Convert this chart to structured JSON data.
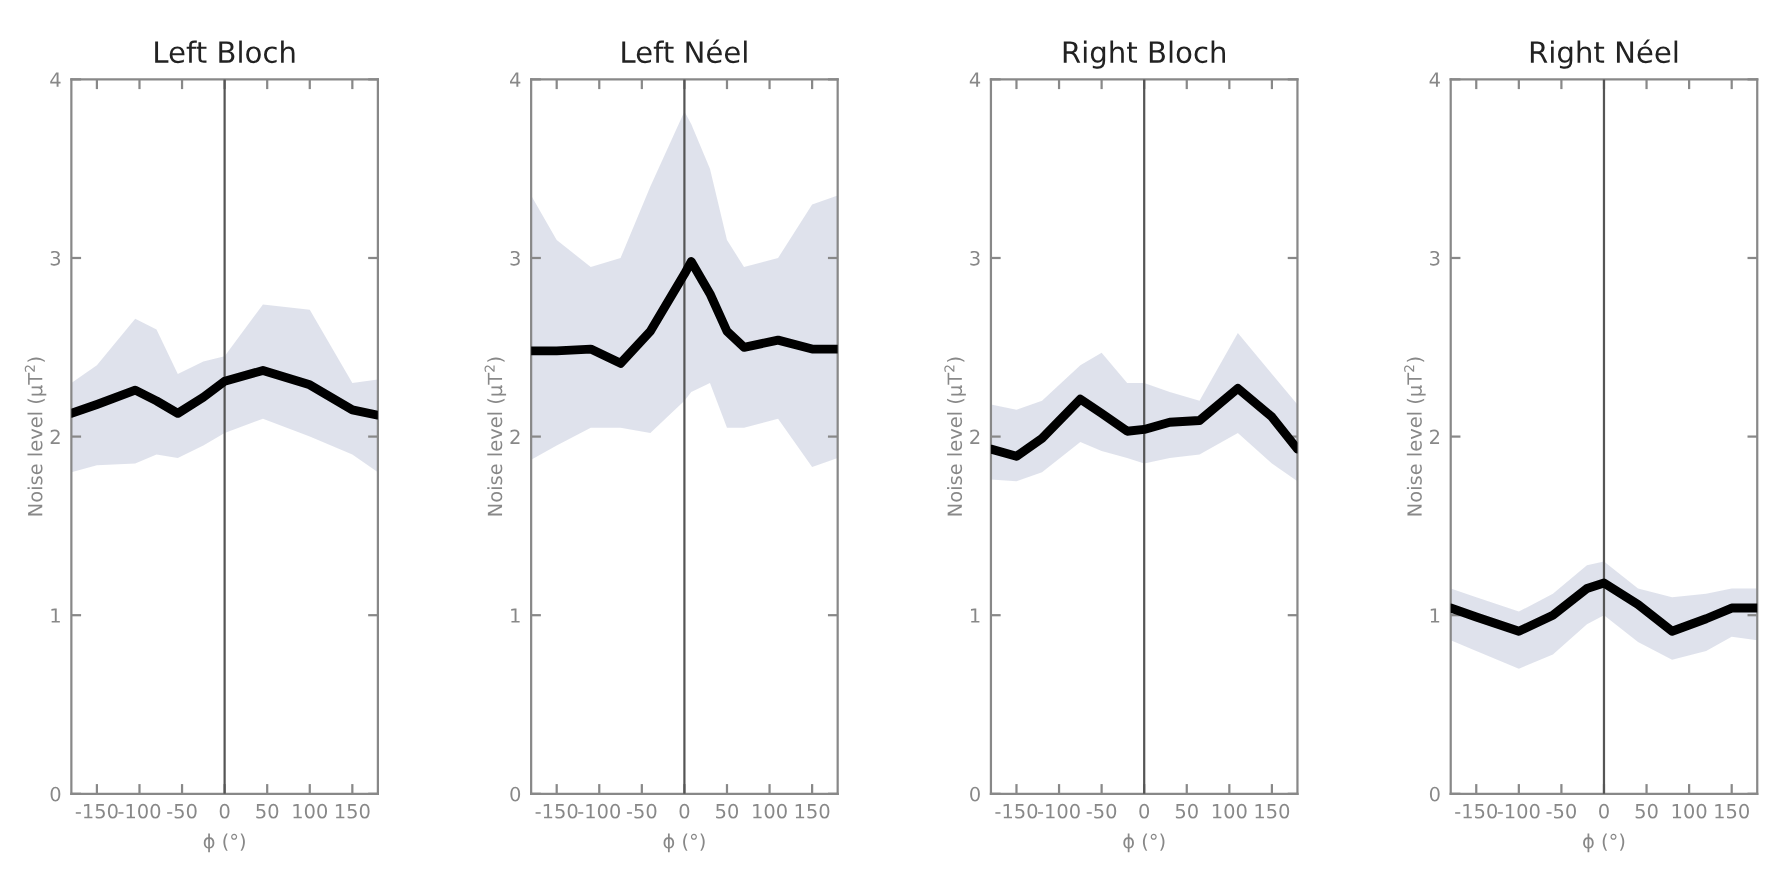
{
  "chart_data": [
    {
      "type": "line",
      "title": "Left Bloch",
      "xlabel": "ϕ (°)",
      "ylabel": "Noise level (μT$^{2}$)",
      "xlim": [
        -180,
        180
      ],
      "ylim": [
        0,
        4
      ],
      "xticks": [
        -150,
        -100,
        -50,
        0,
        50,
        100,
        150
      ],
      "yticks": [
        0,
        1,
        2,
        3,
        4
      ],
      "grid": false,
      "legend": false,
      "marker": "none",
      "line_style": "solid",
      "ref_lines": [
        {
          "axis": "x",
          "value": 0,
          "color": "#555555"
        }
      ],
      "series": [
        {
          "color": "#000000",
          "x": [
            -180,
            -150,
            -105,
            -80,
            -55,
            -25,
            0,
            45,
            100,
            150,
            180
          ],
          "values": [
            2.13,
            2.18,
            2.26,
            2.2,
            2.13,
            2.22,
            2.31,
            2.37,
            2.29,
            2.15,
            2.12
          ],
          "lower": [
            1.8,
            1.84,
            1.85,
            1.9,
            1.88,
            1.95,
            2.02,
            2.1,
            2.0,
            1.9,
            1.8
          ],
          "upper": [
            2.3,
            2.4,
            2.66,
            2.6,
            2.35,
            2.42,
            2.45,
            2.74,
            2.71,
            2.3,
            2.32
          ]
        }
      ]
    },
    {
      "type": "line",
      "title": "Left Néel",
      "xlabel": "ϕ (°)",
      "ylabel": "Noise level (μT$^{2}$)",
      "xlim": [
        -180,
        180
      ],
      "ylim": [
        0,
        4
      ],
      "xticks": [
        -150,
        -100,
        -50,
        0,
        50,
        100,
        150
      ],
      "yticks": [
        0,
        1,
        2,
        3,
        4
      ],
      "grid": false,
      "legend": false,
      "marker": "none",
      "line_style": "solid",
      "ref_lines": [
        {
          "axis": "x",
          "value": 0,
          "color": "#555555"
        }
      ],
      "series": [
        {
          "color": "#000000",
          "x": [
            -180,
            -150,
            -110,
            -75,
            -40,
            0,
            8,
            30,
            50,
            70,
            110,
            150,
            180
          ],
          "values": [
            2.48,
            2.48,
            2.49,
            2.41,
            2.59,
            2.91,
            2.98,
            2.8,
            2.59,
            2.5,
            2.54,
            2.49,
            2.49
          ],
          "lower": [
            1.87,
            1.95,
            2.05,
            2.05,
            2.02,
            2.2,
            2.25,
            2.3,
            2.05,
            2.05,
            2.1,
            1.83,
            1.88
          ],
          "upper": [
            3.35,
            3.1,
            2.95,
            3.0,
            3.4,
            3.82,
            3.75,
            3.5,
            3.1,
            2.95,
            3.0,
            3.3,
            3.35
          ]
        }
      ]
    },
    {
      "type": "line",
      "title": "Right Bloch",
      "xlabel": "ϕ (°)",
      "ylabel": "Noise level (μT$^{2}$)",
      "xlim": [
        -180,
        180
      ],
      "ylim": [
        0,
        4
      ],
      "xticks": [
        -150,
        -100,
        -50,
        0,
        50,
        100,
        150
      ],
      "yticks": [
        0,
        1,
        2,
        3,
        4
      ],
      "grid": false,
      "legend": false,
      "marker": "none",
      "line_style": "solid",
      "ref_lines": [
        {
          "axis": "x",
          "value": 0,
          "color": "#555555"
        }
      ],
      "series": [
        {
          "color": "#000000",
          "x": [
            -180,
            -150,
            -120,
            -75,
            -50,
            -20,
            0,
            30,
            65,
            110,
            150,
            180
          ],
          "values": [
            1.93,
            1.89,
            1.99,
            2.21,
            2.13,
            2.03,
            2.04,
            2.08,
            2.09,
            2.27,
            2.11,
            1.93
          ],
          "lower": [
            1.76,
            1.75,
            1.8,
            1.97,
            1.92,
            1.88,
            1.85,
            1.88,
            1.9,
            2.02,
            1.85,
            1.75
          ],
          "upper": [
            2.18,
            2.15,
            2.2,
            2.4,
            2.47,
            2.3,
            2.3,
            2.25,
            2.2,
            2.58,
            2.35,
            2.18
          ]
        }
      ]
    },
    {
      "type": "line",
      "title": "Right Néel",
      "xlabel": "ϕ (°)",
      "ylabel": "Noise level (μT$^{2}$)",
      "xlim": [
        -180,
        180
      ],
      "ylim": [
        0,
        4
      ],
      "xticks": [
        -150,
        -100,
        -50,
        0,
        50,
        100,
        150
      ],
      "yticks": [
        0,
        1,
        2,
        3,
        4
      ],
      "grid": false,
      "legend": false,
      "marker": "none",
      "line_style": "solid",
      "ref_lines": [
        {
          "axis": "x",
          "value": 0,
          "color": "#555555"
        }
      ],
      "series": [
        {
          "color": "#000000",
          "x": [
            -180,
            -150,
            -100,
            -60,
            -20,
            0,
            40,
            80,
            120,
            150,
            180
          ],
          "values": [
            1.04,
            0.99,
            0.91,
            1.0,
            1.15,
            1.18,
            1.06,
            0.91,
            0.98,
            1.04,
            1.04
          ],
          "lower": [
            0.86,
            0.8,
            0.7,
            0.78,
            0.95,
            1.0,
            0.85,
            0.75,
            0.8,
            0.88,
            0.86
          ],
          "upper": [
            1.15,
            1.1,
            1.02,
            1.12,
            1.28,
            1.3,
            1.15,
            1.1,
            1.12,
            1.15,
            1.15
          ]
        }
      ]
    }
  ]
}
